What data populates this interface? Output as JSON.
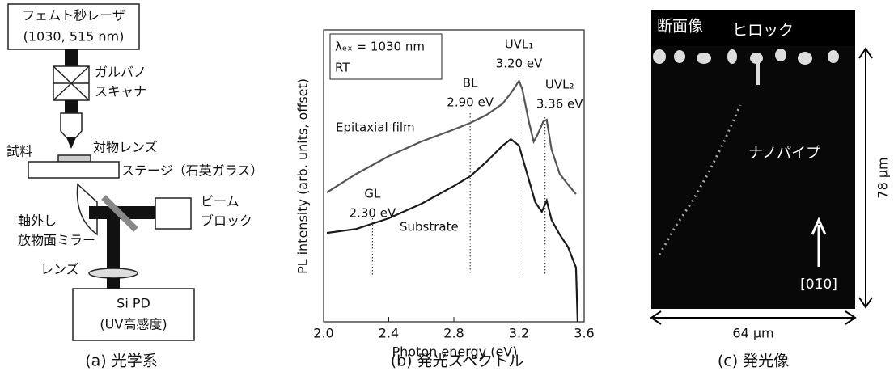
{
  "panel_a": {
    "laser": "フェムト秒レーザ",
    "laser_wavelengths": "(1030, 515 nm)",
    "galvo_1": "ガルバノ",
    "galvo_2": "スキャナ",
    "objective": "対物レンズ",
    "sample": "試料",
    "stage": "ステージ（石英ガラス）",
    "beam_block_1": "ビーム",
    "beam_block_2": "ブロック",
    "mirror_1": "軸外し",
    "mirror_2": "放物面ミラー",
    "lens": "レンズ",
    "detector_1": "Si PD",
    "detector_2": "(UV高感度)",
    "caption": "(a)  光学系"
  },
  "chart_data": {
    "type": "line",
    "caption": "(b)  発光スペクトル",
    "xlabel": "Photon energy (eV)",
    "ylabel": "PL intensity (arb. units, offset)",
    "log_y": true,
    "xlim": [
      2.0,
      3.6
    ],
    "xticks": [
      {
        "value": 2,
        "label": "2.0"
      },
      2.4,
      2.8,
      3.2,
      3.6
    ],
    "ylim": [
      1,
      1000000
    ],
    "annotation": [
      "λₑₓ = 1030 nm",
      "RT"
    ],
    "markers": [
      {
        "name": "GL",
        "x": 2.3,
        "label": "2.30 eV"
      },
      {
        "name": "BL",
        "x": 2.9,
        "label": "2.90 eV"
      },
      {
        "name": "UVL₁",
        "x": 3.2,
        "label": "3.20 eV"
      },
      {
        "name": "UVL₂",
        "x": 3.36,
        "label": "3.36 eV"
      }
    ],
    "series": [
      {
        "name": "Epitaxial film",
        "color": "#555555",
        "x": [
          2.02,
          2.2,
          2.4,
          2.6,
          2.8,
          2.9,
          3.0,
          3.1,
          3.15,
          3.2,
          3.22,
          3.26,
          3.29,
          3.31,
          3.35,
          3.37,
          3.4,
          3.45,
          3.5,
          3.55
        ],
        "values": [
          455,
          1096,
          2543,
          5058,
          8980,
          12200,
          17870,
          30550,
          50240,
          89200,
          60800,
          13200,
          5060,
          6620,
          13200,
          14220,
          3450,
          1096,
          667,
          421
        ]
      },
      {
        "name": "Substrate",
        "color": "#1a1a1a",
        "x": [
          2.02,
          2.2,
          2.4,
          2.6,
          2.8,
          2.9,
          3.0,
          3.1,
          3.15,
          3.2,
          3.25,
          3.3,
          3.34,
          3.37,
          3.4,
          3.45,
          3.5,
          3.55,
          3.56
        ],
        "values": [
          67,
          81,
          134,
          266,
          618,
          977,
          1945,
          4180,
          5680,
          4180,
          1096,
          287,
          182,
          310,
          124,
          62,
          35,
          13,
          1
        ]
      }
    ]
  },
  "panel_c": {
    "cross_section": "断面像",
    "hillock": "ヒロック",
    "nanopipe": "ナノパイプ",
    "direction": "[01̄0]",
    "height": "78 µm",
    "width": "64 µm",
    "caption": "(c)  発光像"
  }
}
